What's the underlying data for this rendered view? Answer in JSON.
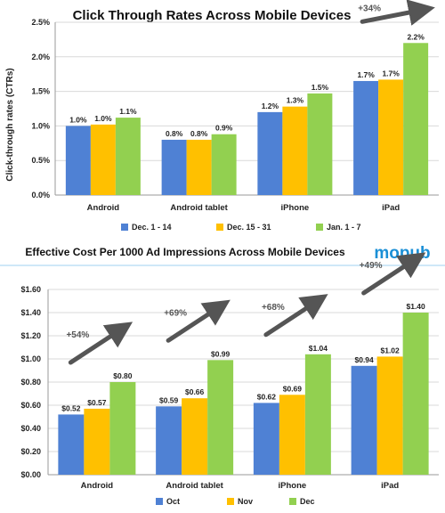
{
  "chart_data": [
    {
      "type": "bar",
      "title": "Click Through Rates Across Mobile Devices",
      "ylabel": "Click-through rates (CTRs)",
      "xlabel": "",
      "categories": [
        "Android",
        "Android tablet",
        "iPhone",
        "iPad"
      ],
      "series": [
        {
          "name": "Dec. 1 - 14",
          "color": "#4f81d4",
          "values": [
            1.0,
            0.8,
            1.2,
            1.65
          ],
          "labels": [
            "1.0%",
            "0.8%",
            "1.2%",
            "1.7%"
          ]
        },
        {
          "name": "Dec. 15 - 31",
          "color": "#ffc000",
          "values": [
            1.02,
            0.8,
            1.28,
            1.67
          ],
          "labels": [
            "1.0%",
            "0.8%",
            "1.3%",
            "1.7%"
          ]
        },
        {
          "name": "Jan. 1 - 7",
          "color": "#92d050",
          "values": [
            1.12,
            0.88,
            1.47,
            2.2
          ],
          "labels": [
            "1.1%",
            "0.9%",
            "1.5%",
            "2.2%"
          ]
        }
      ],
      "yticks": [
        "0.0%",
        "0.5%",
        "1.0%",
        "1.5%",
        "2.0%",
        "2.5%"
      ],
      "ylim": [
        0,
        2.5
      ],
      "grid": true,
      "legend": "bottom",
      "annotations": [
        {
          "category": "iPad",
          "text": "+34%",
          "arrow": true
        }
      ]
    },
    {
      "type": "bar",
      "title": "Effective Cost Per 1000 Ad Impressions Across Mobile Devices",
      "xlabel": "",
      "ylabel": "",
      "categories": [
        "Android",
        "Android tablet",
        "iPhone",
        "iPad"
      ],
      "series": [
        {
          "name": "Oct",
          "color": "#4f81d4",
          "values": [
            0.52,
            0.59,
            0.62,
            0.94
          ],
          "labels": [
            "$0.52",
            "$0.59",
            "$0.62",
            "$0.94"
          ]
        },
        {
          "name": "Nov",
          "color": "#ffc000",
          "values": [
            0.57,
            0.66,
            0.69,
            1.02
          ],
          "labels": [
            "$0.57",
            "$0.66",
            "$0.69",
            "$1.02"
          ]
        },
        {
          "name": "Dec",
          "color": "#92d050",
          "values": [
            0.8,
            0.99,
            1.04,
            1.4
          ],
          "labels": [
            "$0.80",
            "$0.99",
            "$1.04",
            "$1.40"
          ]
        }
      ],
      "yticks": [
        "$0.00",
        "$0.20",
        "$0.40",
        "$0.60",
        "$0.80",
        "$1.00",
        "$1.20",
        "$1.40",
        "$1.60"
      ],
      "ylim": [
        0,
        1.6
      ],
      "grid": true,
      "legend": "bottom",
      "annotations": [
        {
          "category": "Android",
          "text": "+54%",
          "arrow": true
        },
        {
          "category": "Android tablet",
          "text": "+69%",
          "arrow": true
        },
        {
          "category": "iPhone",
          "text": "+68%",
          "arrow": true
        },
        {
          "category": "iPad",
          "text": "+49%",
          "arrow": true
        }
      ]
    }
  ],
  "brand": {
    "logo_text": "mopub",
    "color": "#1a8fd6"
  }
}
